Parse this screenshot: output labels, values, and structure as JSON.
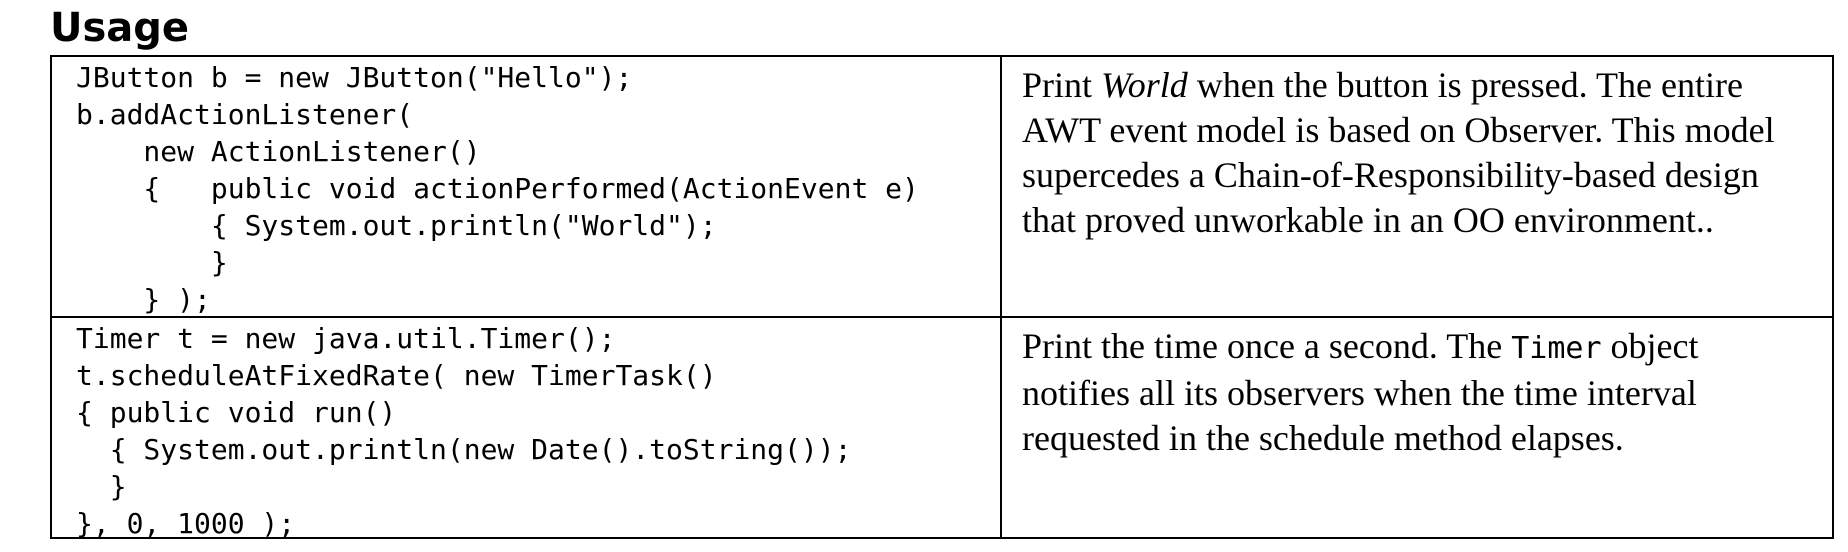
{
  "heading": "Usage",
  "rows": [
    {
      "code": "JButton b = new JButton(\"Hello\");\nb.addActionListener(\n    new ActionListener()\n    {   public void actionPerformed(ActionEvent e)\n        { System.out.println(\"World\");\n        }\n    } );",
      "description": {
        "before": "Print ",
        "emphasis": "World",
        "after": " when the button is pressed. The entire AWT event model is based on Observer. This model supercedes a Chain-of-Responsibility-based design that proved unworkable in an OO environment.."
      }
    },
    {
      "code": "Timer t = new java.util.Timer();\nt.scheduleAtFixedRate( new TimerTask()\n{ public void run()\n  { System.out.println(new Date().toString());\n  }\n}, 0, 1000 );",
      "description": {
        "before": "Print the time once a second. The ",
        "code_term": "Timer",
        "after": " object notifies all its observers when the time interval requested in the schedule method elapses."
      }
    }
  ]
}
